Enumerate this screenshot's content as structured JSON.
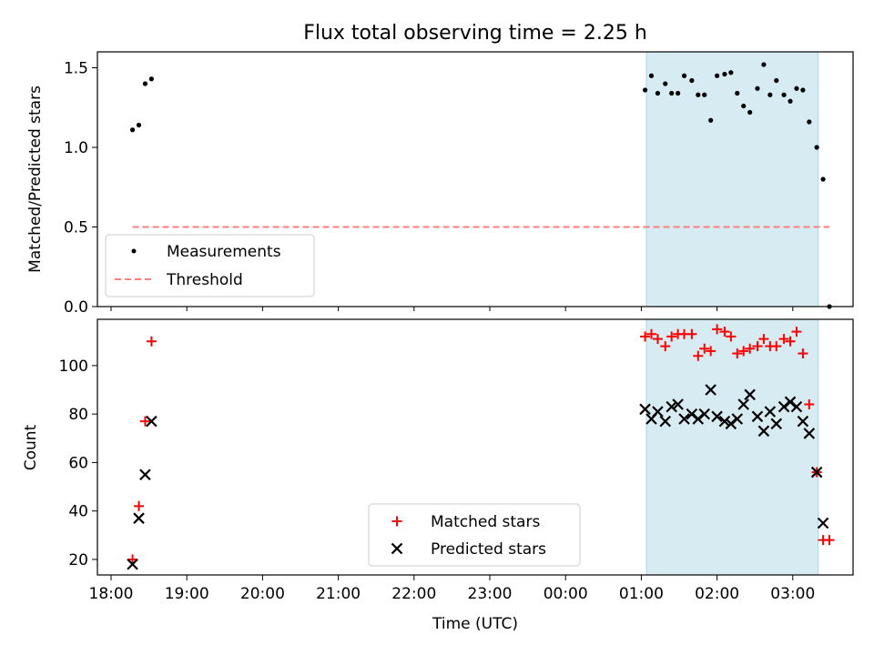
{
  "title": "Flux total observing time = 2.25 h",
  "colors": {
    "measurement": "#000000",
    "threshold": "#ff7f7f",
    "matched": "#ff0000",
    "predicted": "#000000",
    "highlight": "#add8e6"
  },
  "chart_data": [
    {
      "type": "scatter",
      "ylabel": "Matched/Predicted stars",
      "ylim": [
        0,
        1.6
      ],
      "yticks": [
        "0.0",
        "0.5",
        "1.0",
        "1.5"
      ],
      "xaxis_ticks_shared": true,
      "highlight_span": {
        "x_start": "01:04",
        "x_end": "03:20"
      },
      "legend": {
        "position": "lower-left",
        "entries": [
          "Measurements",
          "Threshold"
        ]
      },
      "series": [
        {
          "name": "Measurements",
          "marker": "dot",
          "points": [
            [
              "18:17",
              1.11
            ],
            [
              "18:22",
              1.14
            ],
            [
              "18:27",
              1.4
            ],
            [
              "18:32",
              1.43
            ],
            [
              "01:03",
              1.36
            ],
            [
              "01:08",
              1.45
            ],
            [
              "01:13",
              1.34
            ],
            [
              "01:19",
              1.4
            ],
            [
              "01:24",
              1.34
            ],
            [
              "01:29",
              1.34
            ],
            [
              "01:34",
              1.45
            ],
            [
              "01:40",
              1.42
            ],
            [
              "01:45",
              1.33
            ],
            [
              "01:50",
              1.33
            ],
            [
              "01:55",
              1.17
            ],
            [
              "02:00",
              1.45
            ],
            [
              "02:06",
              1.46
            ],
            [
              "02:11",
              1.47
            ],
            [
              "02:16",
              1.34
            ],
            [
              "02:21",
              1.26
            ],
            [
              "02:26",
              1.22
            ],
            [
              "02:32",
              1.37
            ],
            [
              "02:37",
              1.52
            ],
            [
              "02:42",
              1.33
            ],
            [
              "02:47",
              1.42
            ],
            [
              "02:53",
              1.33
            ],
            [
              "02:58",
              1.29
            ],
            [
              "03:03",
              1.37
            ],
            [
              "03:08",
              1.36
            ],
            [
              "03:13",
              1.16
            ],
            [
              "03:19",
              1.0
            ],
            [
              "03:24",
              0.8
            ],
            [
              "03:29",
              0.0
            ]
          ]
        },
        {
          "name": "Threshold",
          "style": "dashed",
          "points": [
            [
              "18:17",
              0.5
            ],
            [
              "03:29",
              0.5
            ]
          ]
        }
      ]
    },
    {
      "type": "scatter",
      "xlabel": "Time (UTC)",
      "ylabel": "Count",
      "ylim": [
        13.6,
        119.1
      ],
      "yticks": [
        "20",
        "40",
        "60",
        "80",
        "100"
      ],
      "xticks": [
        "18:00",
        "19:00",
        "20:00",
        "21:00",
        "22:00",
        "23:00",
        "00:00",
        "01:00",
        "02:00",
        "03:00"
      ],
      "highlight_span": {
        "x_start": "01:04",
        "x_end": "03:20"
      },
      "legend": {
        "position": "lower-center",
        "entries": [
          "Matched stars",
          "Predicted stars"
        ]
      },
      "series": [
        {
          "name": "Matched stars",
          "marker": "+",
          "points": [
            [
              "18:17",
              20
            ],
            [
              "18:22",
              42
            ],
            [
              "18:27",
              77
            ],
            [
              "18:32",
              110
            ],
            [
              "01:03",
              112
            ],
            [
              "01:08",
              113
            ],
            [
              "01:13",
              111
            ],
            [
              "01:19",
              108
            ],
            [
              "01:24",
              112
            ],
            [
              "01:29",
              113
            ],
            [
              "01:34",
              113
            ],
            [
              "01:40",
              113
            ],
            [
              "01:45",
              104
            ],
            [
              "01:50",
              107
            ],
            [
              "01:55",
              106
            ],
            [
              "02:00",
              115
            ],
            [
              "02:06",
              114
            ],
            [
              "02:11",
              112
            ],
            [
              "02:16",
              105
            ],
            [
              "02:21",
              106
            ],
            [
              "02:26",
              107
            ],
            [
              "02:32",
              108
            ],
            [
              "02:37",
              111
            ],
            [
              "02:42",
              108
            ],
            [
              "02:47",
              108
            ],
            [
              "02:53",
              111
            ],
            [
              "02:58",
              110
            ],
            [
              "03:03",
              114
            ],
            [
              "03:08",
              105
            ],
            [
              "03:13",
              84
            ],
            [
              "03:19",
              56
            ],
            [
              "03:24",
              28
            ],
            [
              "03:29",
              28
            ]
          ]
        },
        {
          "name": "Predicted stars",
          "marker": "x",
          "points": [
            [
              "18:17",
              18
            ],
            [
              "18:22",
              37
            ],
            [
              "18:27",
              55
            ],
            [
              "18:32",
              77
            ],
            [
              "01:03",
              82
            ],
            [
              "01:08",
              78
            ],
            [
              "01:13",
              81
            ],
            [
              "01:19",
              77
            ],
            [
              "01:24",
              83
            ],
            [
              "01:29",
              84
            ],
            [
              "01:34",
              78
            ],
            [
              "01:40",
              80
            ],
            [
              "01:45",
              78
            ],
            [
              "01:50",
              80
            ],
            [
              "01:55",
              90
            ],
            [
              "02:00",
              79
            ],
            [
              "02:06",
              77
            ],
            [
              "02:11",
              76
            ],
            [
              "02:16",
              78
            ],
            [
              "02:21",
              84
            ],
            [
              "02:26",
              88
            ],
            [
              "02:32",
              79
            ],
            [
              "02:37",
              73
            ],
            [
              "02:42",
              81
            ],
            [
              "02:47",
              76
            ],
            [
              "02:53",
              83
            ],
            [
              "02:58",
              85
            ],
            [
              "03:03",
              83
            ],
            [
              "03:08",
              77
            ],
            [
              "03:13",
              72
            ],
            [
              "03:19",
              56
            ],
            [
              "03:24",
              35
            ]
          ]
        }
      ]
    }
  ]
}
